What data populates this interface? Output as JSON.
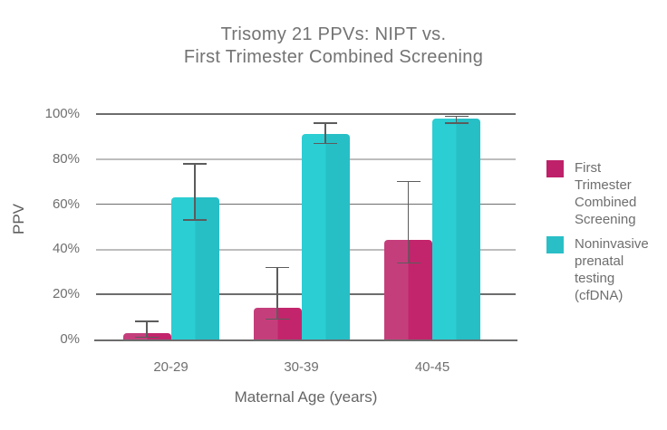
{
  "title": {
    "line1": "Trisomy 21 PPVs: NIPT vs.",
    "line2": "First Trimester Combined Screening"
  },
  "chart_data": {
    "type": "bar",
    "title": "Trisomy 21 PPVs: NIPT vs. First Trimester Combined Screening",
    "categories": [
      "20-29",
      "30-39",
      "40-45"
    ],
    "xlabel": "Maternal Age (years)",
    "ylabel": "PPV",
    "ylim": [
      0,
      100
    ],
    "ytick_values": [
      0,
      20,
      40,
      60,
      80,
      100
    ],
    "ytick_labels": [
      "0%",
      "20%",
      "40%",
      "60%",
      "80%",
      "100%"
    ],
    "grid": true,
    "error_bars": true,
    "legend_position": "right",
    "series": [
      {
        "name": "First Trimester Combined Screening",
        "short_name": "fts",
        "color": "#c2256c",
        "color_light": "#c53e7c",
        "legend_color": "#be2169",
        "values": [
          3,
          14,
          44
        ],
        "error_low": [
          1,
          9,
          34
        ],
        "error_high": [
          8,
          32,
          70
        ]
      },
      {
        "name": "Noninvasive prenatal testing (cfDNA)",
        "short_name": "nipt",
        "color": "#26bfc6",
        "color_light": "#2bced3",
        "legend_color": "#2abfc7",
        "values": [
          63,
          91,
          98
        ],
        "error_low": [
          53,
          87,
          96
        ],
        "error_high": [
          78,
          96,
          99
        ]
      }
    ],
    "colors": {
      "grid_dark": "#6d6d6d",
      "grid_light": "#bdbdbd",
      "axis_line": "#6d6d6d",
      "error_bar": "#5c5c5c",
      "tick_text": "#6f6f6f",
      "title_text": "#737373",
      "background": "#ffffff"
    }
  }
}
